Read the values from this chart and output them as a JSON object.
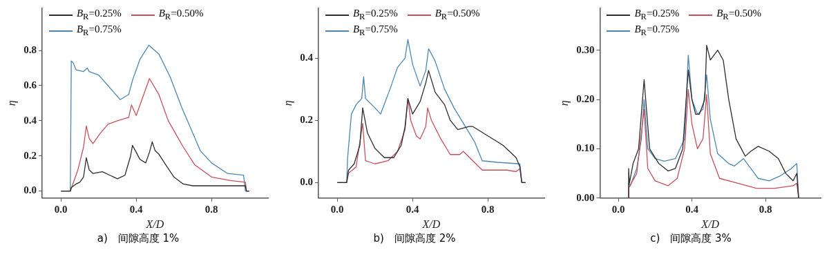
{
  "chart_data": [
    {
      "type": "line",
      "title": "a)　间隙高度 1%",
      "xlabel": "X/D",
      "ylabel": "η",
      "xlim": [
        -0.1,
        1.1
      ],
      "xticks": [
        {
          "value": 0,
          "label": "0.0"
        },
        {
          "value": 0.4,
          "label": "0.4"
        },
        {
          "value": 0.8,
          "label": "0.8"
        }
      ],
      "ylim": [
        -0.04,
        1.04
      ],
      "yticks": [
        {
          "value": 0,
          "label": "0.0"
        },
        {
          "value": 0.2,
          "label": "0.2"
        },
        {
          "value": 0.4,
          "label": "0.4"
        },
        {
          "value": 0.6,
          "label": "0.6"
        },
        {
          "value": 0.8,
          "label": "0.8"
        }
      ],
      "grid": false,
      "legend": "top left",
      "marker": "none",
      "line_style": "solid",
      "series": [
        {
          "name": "B$_{R}$=0.25%",
          "color": "#2b2b2b",
          "x": [
            0,
            0.05,
            0.055,
            0.08,
            0.1,
            0.12,
            0.135,
            0.15,
            0.17,
            0.22,
            0.26,
            0.3,
            0.34,
            0.37,
            0.38,
            0.4,
            0.42,
            0.45,
            0.47,
            0.485,
            0.5,
            0.52,
            0.55,
            0.6,
            0.65,
            0.7,
            0.8,
            0.9,
            0.98,
            0.985,
            1.0
          ],
          "values": [
            0,
            0,
            0.02,
            0.04,
            0.05,
            0.08,
            0.19,
            0.12,
            0.1,
            0.11,
            0.09,
            0.07,
            0.09,
            0.2,
            0.26,
            0.22,
            0.18,
            0.16,
            0.22,
            0.28,
            0.23,
            0.21,
            0.16,
            0.08,
            0.04,
            0.03,
            0.03,
            0.03,
            0.03,
            0,
            0
          ]
        },
        {
          "name": "B$_{R}$=0.50%",
          "color": "#c8505a",
          "x": [
            0,
            0.05,
            0.06,
            0.09,
            0.12,
            0.135,
            0.15,
            0.17,
            0.21,
            0.25,
            0.3,
            0.36,
            0.375,
            0.4,
            0.43,
            0.47,
            0.52,
            0.57,
            0.65,
            0.71,
            0.8,
            0.9,
            0.98,
            0.985,
            1.0
          ],
          "values": [
            0,
            0,
            0.03,
            0.12,
            0.25,
            0.37,
            0.3,
            0.27,
            0.33,
            0.38,
            0.4,
            0.42,
            0.49,
            0.43,
            0.52,
            0.64,
            0.55,
            0.4,
            0.25,
            0.15,
            0.08,
            0.06,
            0.05,
            0,
            0
          ]
        },
        {
          "name": "B$_{R}$=0.75%",
          "color": "#4a86b4",
          "x": [
            0,
            0.05,
            0.055,
            0.065,
            0.08,
            0.12,
            0.14,
            0.15,
            0.2,
            0.25,
            0.315,
            0.36,
            0.38,
            0.42,
            0.467,
            0.52,
            0.58,
            0.64,
            0.74,
            0.8,
            0.885,
            0.97,
            0.98,
            1.0
          ],
          "values": [
            0,
            0,
            0.74,
            0.73,
            0.69,
            0.68,
            0.7,
            0.68,
            0.66,
            0.6,
            0.52,
            0.55,
            0.63,
            0.75,
            0.83,
            0.78,
            0.65,
            0.48,
            0.23,
            0.16,
            0.1,
            0.09,
            0,
            0
          ]
        }
      ]
    },
    {
      "type": "line",
      "title": "b)　间隙高度 2%",
      "xlabel": "X/D",
      "ylabel": "η",
      "xlim": [
        -0.1,
        1.1
      ],
      "xticks": [
        {
          "value": 0,
          "label": "0.0"
        },
        {
          "value": 0.4,
          "label": "0.4"
        },
        {
          "value": 0.8,
          "label": "0.8"
        }
      ],
      "ylim": [
        -0.05,
        0.56
      ],
      "yticks": [
        {
          "value": 0,
          "label": "0.0"
        },
        {
          "value": 0.2,
          "label": "0.2"
        },
        {
          "value": 0.4,
          "label": "0.4"
        }
      ],
      "grid": false,
      "legend": "top left",
      "marker": "none",
      "line_style": "solid",
      "series": [
        {
          "name": "B$_{R}$=0.25%",
          "color": "#2b2b2b",
          "x": [
            0,
            0.05,
            0.06,
            0.09,
            0.12,
            0.135,
            0.16,
            0.2,
            0.25,
            0.3,
            0.34,
            0.36,
            0.375,
            0.39,
            0.4,
            0.44,
            0.47,
            0.485,
            0.52,
            0.57,
            0.6,
            0.64,
            0.7,
            0.72,
            0.8,
            0.88,
            0.95,
            0.97,
            0.98,
            1.0
          ],
          "values": [
            0,
            0,
            0.04,
            0.06,
            0.12,
            0.24,
            0.16,
            0.11,
            0.08,
            0.08,
            0.12,
            0.18,
            0.27,
            0.24,
            0.22,
            0.26,
            0.32,
            0.36,
            0.29,
            0.25,
            0.2,
            0.17,
            0.18,
            0.18,
            0.15,
            0.12,
            0.08,
            0.05,
            0,
            0
          ]
        },
        {
          "name": "B$_{R}$=0.50%",
          "color": "#c8505a",
          "x": [
            0,
            0.05,
            0.06,
            0.1,
            0.135,
            0.15,
            0.2,
            0.27,
            0.32,
            0.36,
            0.375,
            0.39,
            0.42,
            0.44,
            0.47,
            0.48,
            0.5,
            0.55,
            0.6,
            0.65,
            0.67,
            0.72,
            0.77,
            0.9,
            0.95,
            0.97,
            0.98,
            1.0
          ],
          "values": [
            0,
            0,
            0.03,
            0.05,
            0.19,
            0.07,
            0.06,
            0.07,
            0.1,
            0.17,
            0.27,
            0.2,
            0.15,
            0.14,
            0.18,
            0.24,
            0.2,
            0.14,
            0.09,
            0.09,
            0.1,
            0.07,
            0.04,
            0.04,
            0.035,
            0.045,
            0,
            0
          ]
        },
        {
          "name": "B$_{R}$=0.75%",
          "color": "#4a86b4",
          "x": [
            0,
            0.05,
            0.055,
            0.075,
            0.1,
            0.13,
            0.14,
            0.15,
            0.2,
            0.23,
            0.28,
            0.32,
            0.36,
            0.375,
            0.4,
            0.44,
            0.47,
            0.485,
            0.52,
            0.57,
            0.62,
            0.69,
            0.73,
            0.77,
            0.85,
            0.97,
            0.98,
            1.0
          ],
          "values": [
            0,
            0,
            0.08,
            0.22,
            0.25,
            0.27,
            0.34,
            0.27,
            0.24,
            0.22,
            0.3,
            0.37,
            0.4,
            0.46,
            0.38,
            0.31,
            0.36,
            0.43,
            0.39,
            0.3,
            0.24,
            0.17,
            0.13,
            0.07,
            0.065,
            0.06,
            0,
            0
          ]
        }
      ]
    },
    {
      "type": "line",
      "title": "c)　间隙高度 3%",
      "xlabel": "X/D",
      "ylabel": "η",
      "xlim": [
        -0.1,
        1.1
      ],
      "xticks": [
        {
          "value": 0,
          "label": "0.0"
        },
        {
          "value": 0.4,
          "label": "0.4"
        },
        {
          "value": 0.8,
          "label": "0.8"
        }
      ],
      "ylim": [
        0,
        0.385
      ],
      "yticks": [
        {
          "value": 0,
          "label": "0.00"
        },
        {
          "value": 0.1,
          "label": "0.10"
        },
        {
          "value": 0.2,
          "label": "0.20"
        },
        {
          "value": 0.3,
          "label": "0.30"
        }
      ],
      "grid": false,
      "legend": "top left",
      "marker": "none",
      "line_style": "solid",
      "series": [
        {
          "name": "B$_{R}$=0.25%",
          "color": "#2b2b2b",
          "x": [
            0.055,
            0.056,
            0.06,
            0.08,
            0.11,
            0.14,
            0.17,
            0.22,
            0.27,
            0.31,
            0.35,
            0.38,
            0.4,
            0.42,
            0.44,
            0.47,
            0.48,
            0.5,
            0.54,
            0.57,
            0.6,
            0.64,
            0.69,
            0.72,
            0.76,
            0.82,
            0.87,
            0.91,
            0.95,
            0.97,
            0.98
          ],
          "values": [
            0,
            0.06,
            0.03,
            0.07,
            0.1,
            0.24,
            0.1,
            0.07,
            0.055,
            0.06,
            0.1,
            0.26,
            0.2,
            0.17,
            0.17,
            0.2,
            0.31,
            0.28,
            0.3,
            0.28,
            0.2,
            0.12,
            0.085,
            0.095,
            0.105,
            0.095,
            0.08,
            0.05,
            0.035,
            0.05,
            0
          ]
        },
        {
          "name": "B$_{R}$=0.50%",
          "color": "#c8505a",
          "x": [
            0.055,
            0.056,
            0.07,
            0.1,
            0.14,
            0.16,
            0.2,
            0.27,
            0.32,
            0.36,
            0.38,
            0.4,
            0.43,
            0.46,
            0.48,
            0.5,
            0.55,
            0.65,
            0.75,
            0.85,
            0.95,
            0.97,
            0.98
          ],
          "values": [
            0,
            0.02,
            0.03,
            0.05,
            0.18,
            0.06,
            0.035,
            0.025,
            0.04,
            0.1,
            0.22,
            0.15,
            0.1,
            0.12,
            0.21,
            0.09,
            0.04,
            0.03,
            0.02,
            0.02,
            0.025,
            0.03,
            0
          ]
        },
        {
          "name": "B$_{R}$=0.75%",
          "color": "#4a86b4",
          "x": [
            0.055,
            0.056,
            0.065,
            0.1,
            0.125,
            0.14,
            0.16,
            0.2,
            0.25,
            0.31,
            0.36,
            0.38,
            0.4,
            0.43,
            0.46,
            0.48,
            0.5,
            0.54,
            0.6,
            0.63,
            0.68,
            0.72,
            0.76,
            0.82,
            0.88,
            0.94,
            0.97,
            0.98
          ],
          "values": [
            0,
            0.03,
            0.025,
            0.06,
            0.12,
            0.2,
            0.1,
            0.08,
            0.075,
            0.08,
            0.12,
            0.29,
            0.2,
            0.17,
            0.18,
            0.25,
            0.16,
            0.09,
            0.07,
            0.065,
            0.08,
            0.06,
            0.04,
            0.035,
            0.045,
            0.06,
            0.07,
            0
          ]
        }
      ]
    }
  ]
}
